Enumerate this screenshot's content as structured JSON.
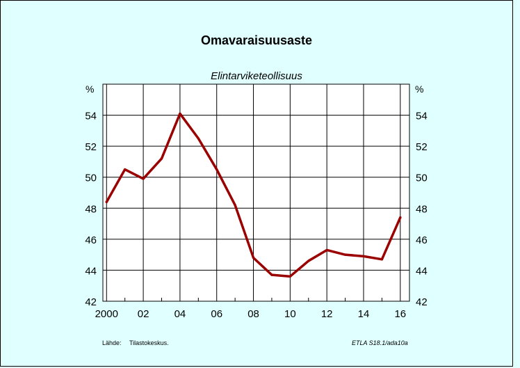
{
  "chart_data": {
    "type": "line",
    "title": "Omavaraisuusaste",
    "subtitle": "Elintarviketeollisuus",
    "unit_left": "%",
    "unit_right": "%",
    "x": [
      2000,
      2001,
      2002,
      2003,
      2004,
      2005,
      2006,
      2007,
      2008,
      2009,
      2010,
      2011,
      2012,
      2013,
      2014,
      2015,
      2016
    ],
    "x_tick_values": [
      2000,
      2002,
      2004,
      2006,
      2008,
      2010,
      2012,
      2014,
      2016
    ],
    "x_tick_labels": [
      "2000",
      "02",
      "04",
      "06",
      "08",
      "10",
      "12",
      "14",
      "16"
    ],
    "y_tick_values": [
      42,
      44,
      46,
      48,
      50,
      52,
      54
    ],
    "y_tick_labels": [
      "42",
      "44",
      "46",
      "48",
      "50",
      "52",
      "54"
    ],
    "ylim": [
      42,
      56
    ],
    "xlim": [
      1999.8,
      2016.5
    ],
    "grid": true,
    "series": [
      {
        "values": [
          48.4,
          50.5,
          49.9,
          51.2,
          54.1,
          52.5,
          50.5,
          48.2,
          44.8,
          43.7,
          43.6,
          44.6,
          45.3,
          45.0,
          44.9,
          44.7,
          47.4
        ],
        "color": "#9b0000"
      }
    ]
  },
  "footer": {
    "source_label": "Lähde:",
    "source_value": "Tilastokeskus.",
    "code": "ETLA S18.1/ada10a"
  }
}
